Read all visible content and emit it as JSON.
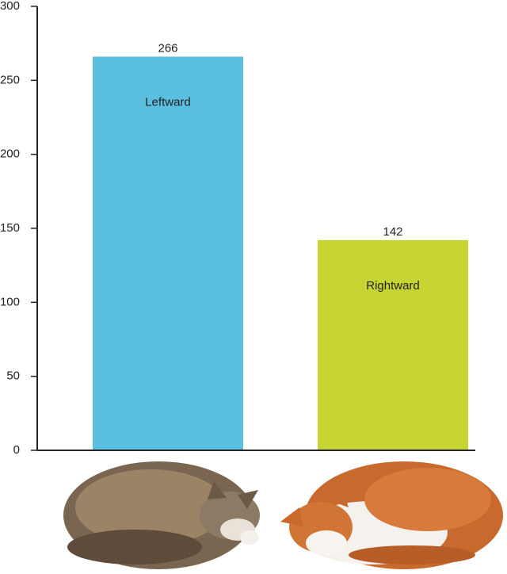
{
  "chart_data": {
    "type": "bar",
    "categories": [
      "Leftward",
      "Rightward"
    ],
    "values": [
      266,
      142
    ],
    "colors": [
      "#5bbfe0",
      "#c6d534"
    ],
    "ylim": [
      0,
      300
    ],
    "yticks": [
      0,
      50,
      100,
      150,
      200,
      250,
      300
    ]
  }
}
